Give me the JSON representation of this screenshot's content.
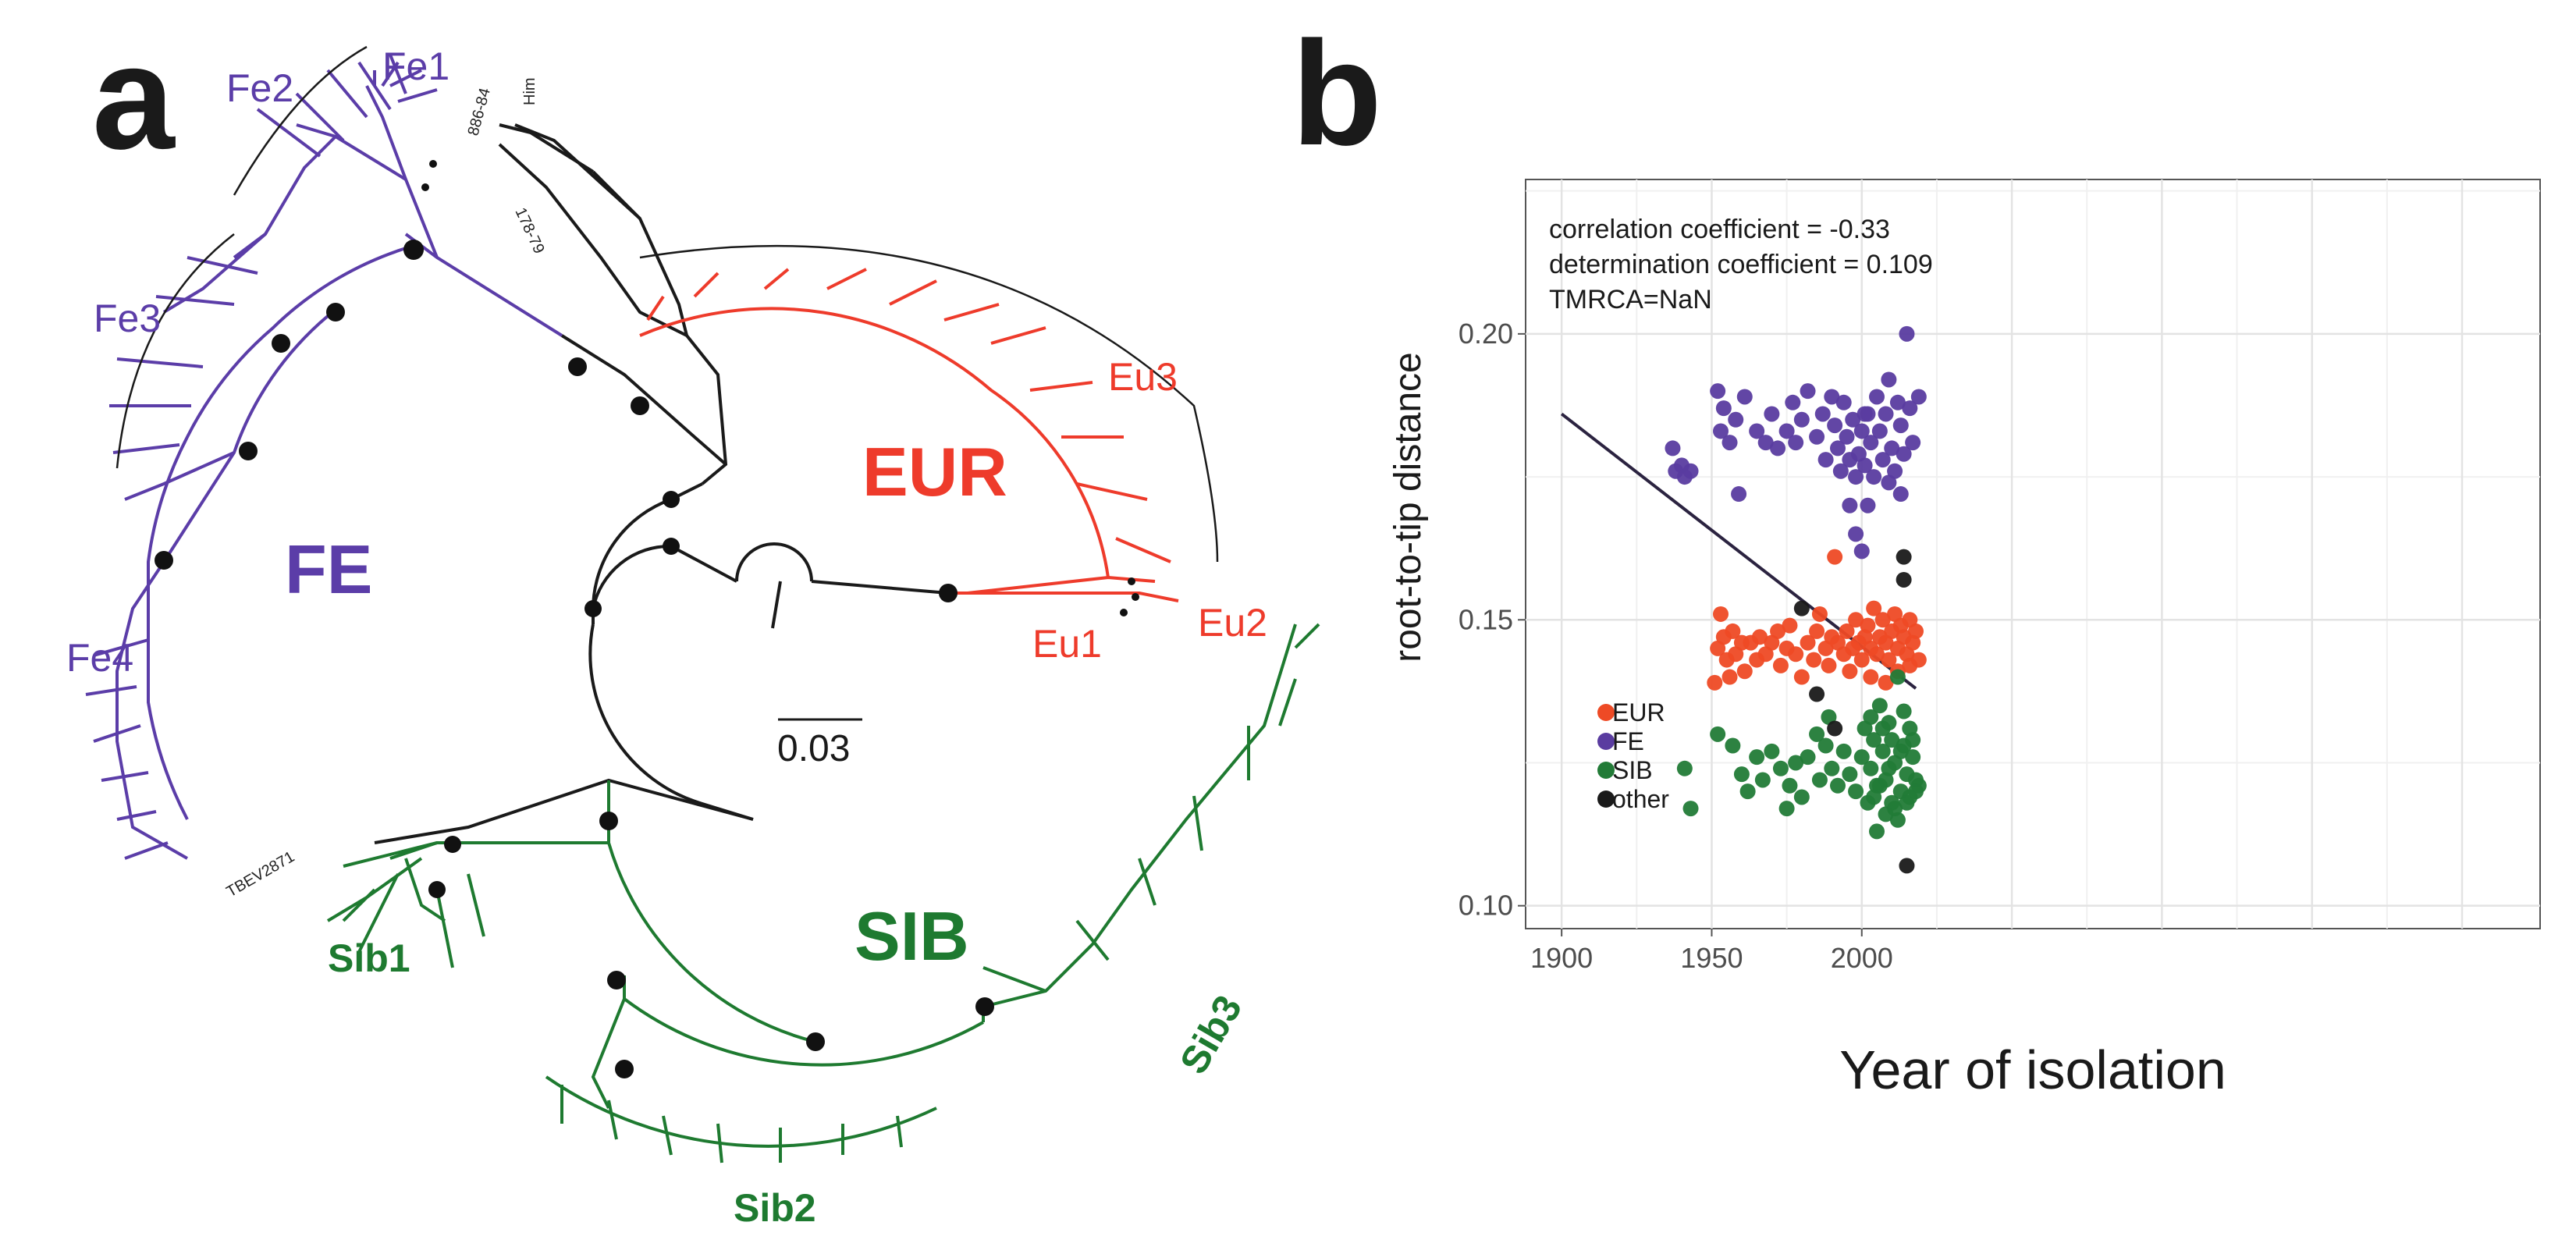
{
  "panel_a": {
    "letter": "a",
    "scale_bar_label": "0.03",
    "clades": {
      "eur": "EUR",
      "fe": "FE",
      "sib": "SIB"
    },
    "subclades": {
      "fe1": "Fe1",
      "fe2": "Fe2",
      "fe3": "Fe3",
      "fe4": "Fe4",
      "eu1": "Eu1",
      "eu2": "Eu2",
      "eu3": "Eu3",
      "sib1": "Sib1",
      "sib2": "Sib2",
      "sib3": "Sib3"
    },
    "tips": {
      "him": "Him",
      "t886": "886-84",
      "t178": "178-79",
      "tbev": "TBEV2871"
    },
    "colors": {
      "fe": "#5b3da8",
      "eur": "#ee3b2b",
      "sib": "#1e7a30",
      "base": "#1a1a1a"
    }
  },
  "panel_b": {
    "letter": "b"
  },
  "chart_data": {
    "type": "scatter",
    "title": "",
    "xlabel": "Year of isolation",
    "ylabel": "root-to-tip distance",
    "xlim": [
      1888,
      2226
    ],
    "ylim": [
      0.096,
      0.227
    ],
    "x_ticks": [
      1900,
      1950,
      2000
    ],
    "y_ticks": [
      "0.10",
      "0.15",
      "0.20"
    ],
    "grid": true,
    "legend_position": "left",
    "annotations": [
      "correlation coefficient = -0.33",
      "determination coefficient = 0.109",
      "TMRCA=NaN"
    ],
    "regression_line": {
      "x": [
        1900,
        2018
      ],
      "y": [
        0.186,
        0.138
      ],
      "color": "#2b2340"
    },
    "series": [
      {
        "name": "EUR",
        "color": "#ee4a25",
        "points": [
          [
            1951,
            0.139
          ],
          [
            1952,
            0.145
          ],
          [
            1953,
            0.151
          ],
          [
            1954,
            0.147
          ],
          [
            1955,
            0.143
          ],
          [
            1956,
            0.14
          ],
          [
            1957,
            0.148
          ],
          [
            1958,
            0.144
          ],
          [
            1960,
            0.146
          ],
          [
            1961,
            0.141
          ],
          [
            1963,
            0.146
          ],
          [
            1965,
            0.143
          ],
          [
            1966,
            0.147
          ],
          [
            1968,
            0.144
          ],
          [
            1970,
            0.146
          ],
          [
            1972,
            0.148
          ],
          [
            1973,
            0.142
          ],
          [
            1975,
            0.145
          ],
          [
            1976,
            0.149
          ],
          [
            1978,
            0.144
          ],
          [
            1980,
            0.14
          ],
          [
            1982,
            0.146
          ],
          [
            1984,
            0.143
          ],
          [
            1985,
            0.148
          ],
          [
            1986,
            0.151
          ],
          [
            1988,
            0.145
          ],
          [
            1989,
            0.142
          ],
          [
            1990,
            0.147
          ],
          [
            1991,
            0.161
          ],
          [
            1992,
            0.146
          ],
          [
            1994,
            0.144
          ],
          [
            1995,
            0.148
          ],
          [
            1996,
            0.141
          ],
          [
            1997,
            0.145
          ],
          [
            1998,
            0.15
          ],
          [
            1999,
            0.146
          ],
          [
            2000,
            0.143
          ],
          [
            2001,
            0.147
          ],
          [
            2002,
            0.149
          ],
          [
            2003,
            0.145
          ],
          [
            2004,
            0.152
          ],
          [
            2005,
            0.144
          ],
          [
            2006,
            0.147
          ],
          [
            2007,
            0.15
          ],
          [
            2008,
            0.146
          ],
          [
            2009,
            0.143
          ],
          [
            2010,
            0.148
          ],
          [
            2011,
            0.151
          ],
          [
            2012,
            0.145
          ],
          [
            2013,
            0.149
          ],
          [
            2014,
            0.147
          ],
          [
            2015,
            0.144
          ],
          [
            2016,
            0.15
          ],
          [
            2017,
            0.146
          ],
          [
            2018,
            0.148
          ],
          [
            2019,
            0.143
          ],
          [
            2003,
            0.14
          ],
          [
            2008,
            0.139
          ],
          [
            2012,
            0.141
          ],
          [
            2016,
            0.142
          ]
        ]
      },
      {
        "name": "FE",
        "color": "#5a3ca0",
        "points": [
          [
            1937,
            0.18
          ],
          [
            1938,
            0.176
          ],
          [
            1940,
            0.177
          ],
          [
            1941,
            0.175
          ],
          [
            1943,
            0.176
          ],
          [
            1952,
            0.19
          ],
          [
            1953,
            0.183
          ],
          [
            1954,
            0.187
          ],
          [
            1956,
            0.181
          ],
          [
            1958,
            0.185
          ],
          [
            1959,
            0.172
          ],
          [
            1961,
            0.189
          ],
          [
            1965,
            0.183
          ],
          [
            1968,
            0.181
          ],
          [
            1970,
            0.186
          ],
          [
            1972,
            0.18
          ],
          [
            1975,
            0.183
          ],
          [
            1977,
            0.188
          ],
          [
            1978,
            0.181
          ],
          [
            1980,
            0.185
          ],
          [
            1982,
            0.19
          ],
          [
            1985,
            0.182
          ],
          [
            1987,
            0.186
          ],
          [
            1988,
            0.178
          ],
          [
            1990,
            0.189
          ],
          [
            1991,
            0.184
          ],
          [
            1992,
            0.18
          ],
          [
            1993,
            0.176
          ],
          [
            1994,
            0.188
          ],
          [
            1995,
            0.182
          ],
          [
            1996,
            0.178
          ],
          [
            1997,
            0.185
          ],
          [
            1998,
            0.175
          ],
          [
            1999,
            0.179
          ],
          [
            2000,
            0.183
          ],
          [
            2001,
            0.177
          ],
          [
            2002,
            0.186
          ],
          [
            2003,
            0.181
          ],
          [
            2004,
            0.175
          ],
          [
            2005,
            0.189
          ],
          [
            2006,
            0.183
          ],
          [
            2007,
            0.178
          ],
          [
            2008,
            0.186
          ],
          [
            2009,
            0.192
          ],
          [
            2010,
            0.18
          ],
          [
            2011,
            0.176
          ],
          [
            2012,
            0.188
          ],
          [
            2013,
            0.184
          ],
          [
            2014,
            0.179
          ],
          [
            2015,
            0.2
          ],
          [
            2016,
            0.187
          ],
          [
            2017,
            0.181
          ],
          [
            2019,
            0.189
          ],
          [
            1998,
            0.165
          ],
          [
            2000,
            0.162
          ],
          [
            2002,
            0.17
          ],
          [
            2013,
            0.172
          ],
          [
            1996,
            0.17
          ],
          [
            2009,
            0.174
          ],
          [
            2001,
            0.186
          ]
        ]
      },
      {
        "name": "SIB",
        "color": "#227b37",
        "points": [
          [
            1941,
            0.124
          ],
          [
            1943,
            0.117
          ],
          [
            1952,
            0.13
          ],
          [
            1957,
            0.128
          ],
          [
            1960,
            0.123
          ],
          [
            1962,
            0.12
          ],
          [
            1965,
            0.126
          ],
          [
            1967,
            0.122
          ],
          [
            1970,
            0.127
          ],
          [
            1973,
            0.124
          ],
          [
            1975,
            0.117
          ],
          [
            1976,
            0.121
          ],
          [
            1978,
            0.125
          ],
          [
            1980,
            0.119
          ],
          [
            1982,
            0.126
          ],
          [
            1985,
            0.13
          ],
          [
            1986,
            0.122
          ],
          [
            1988,
            0.128
          ],
          [
            1990,
            0.124
          ],
          [
            1992,
            0.121
          ],
          [
            1994,
            0.127
          ],
          [
            1996,
            0.123
          ],
          [
            1998,
            0.12
          ],
          [
            2000,
            0.126
          ],
          [
            2001,
            0.131
          ],
          [
            2002,
            0.118
          ],
          [
            2003,
            0.124
          ],
          [
            2004,
            0.129
          ],
          [
            2005,
            0.121
          ],
          [
            2006,
            0.135
          ],
          [
            2007,
            0.127
          ],
          [
            2008,
            0.122
          ],
          [
            2009,
            0.132
          ],
          [
            2010,
            0.118
          ],
          [
            2011,
            0.125
          ],
          [
            2012,
            0.14
          ],
          [
            2013,
            0.12
          ],
          [
            2014,
            0.128
          ],
          [
            2015,
            0.123
          ],
          [
            2016,
            0.119
          ],
          [
            2017,
            0.126
          ],
          [
            2018,
            0.122
          ],
          [
            2019,
            0.121
          ],
          [
            2005,
            0.113
          ],
          [
            2008,
            0.116
          ],
          [
            2012,
            0.115
          ],
          [
            2014,
            0.134
          ],
          [
            2010,
            0.129
          ],
          [
            2016,
            0.131
          ],
          [
            2004,
            0.119
          ],
          [
            2011,
            0.117
          ],
          [
            2007,
            0.131
          ],
          [
            2013,
            0.127
          ],
          [
            2015,
            0.118
          ],
          [
            2009,
            0.124
          ],
          [
            2006,
            0.121
          ],
          [
            2017,
            0.129
          ],
          [
            2003,
            0.133
          ],
          [
            1989,
            0.133
          ],
          [
            2018,
            0.12
          ]
        ]
      },
      {
        "name": "other",
        "color": "#1a1a1a",
        "points": [
          [
            1980,
            0.152
          ],
          [
            1985,
            0.137
          ],
          [
            1991,
            0.131
          ],
          [
            2014,
            0.161
          ],
          [
            2014,
            0.157
          ],
          [
            2015,
            0.107
          ]
        ]
      }
    ]
  }
}
